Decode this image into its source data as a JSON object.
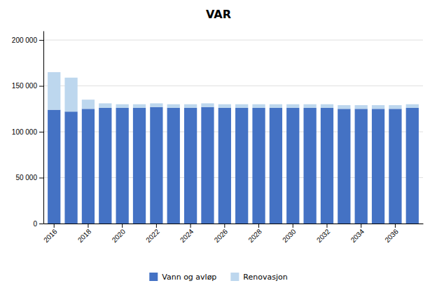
{
  "chart_data": {
    "type": "bar",
    "title": "VAR",
    "stacked": true,
    "grid": true,
    "legend": "bottom",
    "categories": [
      "2016",
      null,
      "2018",
      null,
      "2020",
      null,
      "2022",
      null,
      "2024",
      null,
      "2026",
      null,
      "2028",
      null,
      "2030",
      null,
      "2032",
      null,
      "2034",
      null,
      "2036",
      null
    ],
    "series": [
      {
        "name": "Vann og avløp",
        "color": "#4472C4",
        "values": [
          124000,
          122000,
          125000,
          126000,
          126000,
          126000,
          127000,
          126000,
          126000,
          127000,
          126000,
          126000,
          126000,
          126000,
          126000,
          126000,
          126000,
          125000,
          125000,
          125000,
          125000,
          126000
        ]
      },
      {
        "name": "Renovasjon",
        "color": "#BDD7EE",
        "values": [
          41000,
          37000,
          10000,
          5000,
          4000,
          4000,
          4000,
          4000,
          4000,
          4000,
          4000,
          4000,
          4000,
          4000,
          4000,
          4000,
          4000,
          4000,
          4000,
          4000,
          4000,
          4000
        ]
      }
    ],
    "ylim": [
      0,
      210000
    ],
    "yticks": [
      0,
      {
        "value": 50000,
        "label": "50 000"
      },
      {
        "value": 100000,
        "label": "100 000"
      },
      {
        "value": 150000,
        "label": "150 000"
      },
      {
        "value": 200000,
        "label": "200 000"
      }
    ]
  }
}
